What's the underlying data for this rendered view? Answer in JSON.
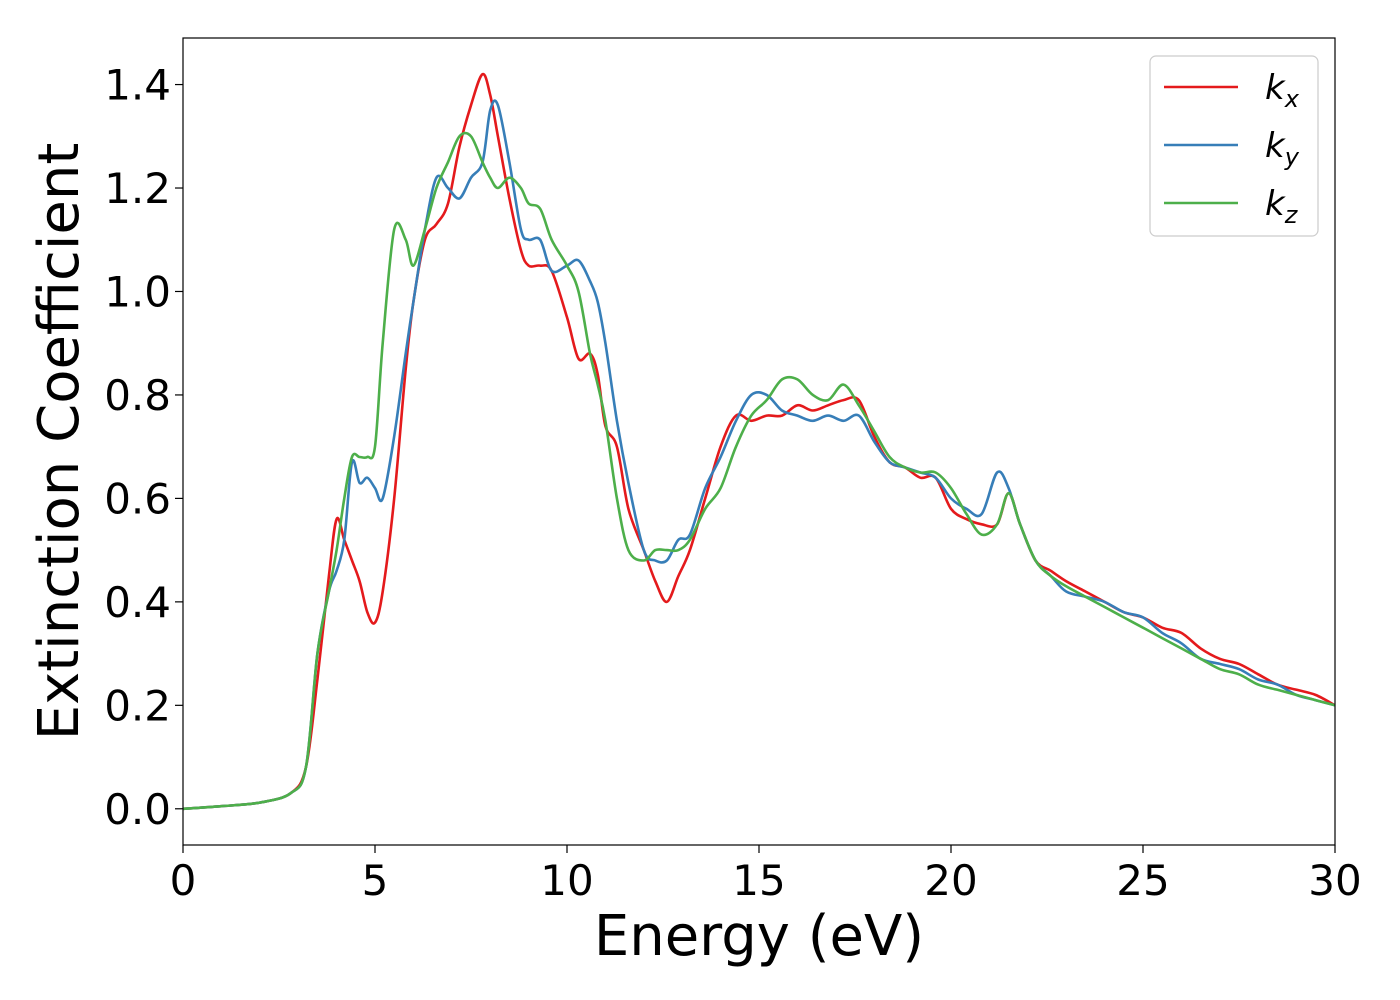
{
  "chart_data": {
    "type": "line",
    "xlabel": "Energy (eV)",
    "ylabel": "Extinction Coefficient",
    "xlim": [
      0,
      30
    ],
    "ylim": [
      -0.07,
      1.49
    ],
    "xticks": [
      0,
      5,
      10,
      15,
      20,
      25,
      30
    ],
    "yticks": [
      0.0,
      0.2,
      0.4,
      0.6,
      0.8,
      1.0,
      1.2,
      1.4
    ],
    "xtick_labels": [
      "0",
      "5",
      "10",
      "15",
      "20",
      "25",
      "30"
    ],
    "ytick_labels": [
      "0.0",
      "0.2",
      "0.4",
      "0.6",
      "0.8",
      "1.0",
      "1.2",
      "1.4"
    ],
    "grid": false,
    "legend_position": "top-right",
    "series": [
      {
        "name": "k",
        "subscript": "x",
        "color": "#e41a1c",
        "x": [
          0,
          1,
          2,
          2.8,
          3.2,
          3.5,
          3.8,
          4.0,
          4.2,
          4.4,
          4.6,
          4.8,
          5.0,
          5.2,
          5.5,
          5.8,
          6.0,
          6.3,
          6.6,
          6.9,
          7.2,
          7.5,
          7.8,
          8.0,
          8.2,
          8.5,
          8.8,
          9.0,
          9.3,
          9.6,
          10.0,
          10.3,
          10.6,
          10.8,
          11.0,
          11.3,
          11.6,
          12.0,
          12.3,
          12.6,
          12.9,
          13.2,
          13.6,
          14.0,
          14.4,
          14.8,
          15.2,
          15.6,
          16.0,
          16.4,
          16.8,
          17.2,
          17.6,
          18.0,
          18.4,
          18.8,
          19.2,
          19.6,
          20.0,
          20.4,
          20.8,
          21.2,
          21.5,
          21.8,
          22.2,
          22.6,
          23.0,
          23.5,
          24.0,
          24.5,
          25.0,
          25.5,
          26.0,
          26.5,
          27.0,
          27.5,
          28.0,
          28.5,
          29.0,
          29.5,
          30.0
        ],
        "y": [
          0.0,
          0.005,
          0.012,
          0.03,
          0.08,
          0.25,
          0.45,
          0.56,
          0.52,
          0.48,
          0.44,
          0.38,
          0.36,
          0.42,
          0.6,
          0.85,
          0.98,
          1.1,
          1.13,
          1.17,
          1.28,
          1.36,
          1.42,
          1.38,
          1.3,
          1.18,
          1.08,
          1.05,
          1.05,
          1.04,
          0.95,
          0.87,
          0.88,
          0.84,
          0.74,
          0.7,
          0.58,
          0.5,
          0.44,
          0.4,
          0.45,
          0.5,
          0.6,
          0.7,
          0.76,
          0.75,
          0.76,
          0.76,
          0.78,
          0.77,
          0.78,
          0.79,
          0.79,
          0.72,
          0.67,
          0.66,
          0.64,
          0.64,
          0.58,
          0.56,
          0.55,
          0.55,
          0.61,
          0.55,
          0.48,
          0.46,
          0.44,
          0.42,
          0.4,
          0.38,
          0.37,
          0.35,
          0.34,
          0.31,
          0.29,
          0.28,
          0.26,
          0.24,
          0.23,
          0.22,
          0.2
        ]
      },
      {
        "name": "k",
        "subscript": "y",
        "color": "#377eb8",
        "x": [
          0,
          1,
          2,
          2.8,
          3.2,
          3.5,
          3.8,
          4.0,
          4.2,
          4.4,
          4.6,
          4.8,
          5.0,
          5.2,
          5.5,
          5.8,
          6.0,
          6.3,
          6.6,
          6.9,
          7.2,
          7.5,
          7.8,
          8.0,
          8.2,
          8.5,
          8.8,
          9.0,
          9.3,
          9.6,
          10.0,
          10.3,
          10.6,
          10.8,
          11.0,
          11.3,
          11.6,
          12.0,
          12.3,
          12.6,
          12.9,
          13.2,
          13.6,
          14.0,
          14.4,
          14.8,
          15.2,
          15.6,
          16.0,
          16.4,
          16.8,
          17.2,
          17.6,
          18.0,
          18.4,
          18.8,
          19.2,
          19.6,
          20.0,
          20.4,
          20.8,
          21.2,
          21.5,
          21.8,
          22.2,
          22.6,
          23.0,
          23.5,
          24.0,
          24.5,
          25.0,
          25.5,
          26.0,
          26.5,
          27.0,
          27.5,
          28.0,
          28.5,
          29.0,
          29.5,
          30.0
        ],
        "y": [
          0.0,
          0.005,
          0.012,
          0.03,
          0.08,
          0.3,
          0.42,
          0.46,
          0.52,
          0.67,
          0.63,
          0.64,
          0.62,
          0.6,
          0.72,
          0.88,
          0.98,
          1.12,
          1.22,
          1.2,
          1.18,
          1.22,
          1.25,
          1.35,
          1.36,
          1.25,
          1.12,
          1.1,
          1.1,
          1.04,
          1.05,
          1.06,
          1.02,
          0.98,
          0.9,
          0.75,
          0.63,
          0.5,
          0.48,
          0.48,
          0.52,
          0.53,
          0.62,
          0.68,
          0.75,
          0.8,
          0.8,
          0.77,
          0.76,
          0.75,
          0.76,
          0.75,
          0.76,
          0.71,
          0.67,
          0.66,
          0.65,
          0.64,
          0.6,
          0.58,
          0.57,
          0.65,
          0.62,
          0.55,
          0.48,
          0.45,
          0.42,
          0.41,
          0.4,
          0.38,
          0.37,
          0.34,
          0.32,
          0.29,
          0.28,
          0.27,
          0.25,
          0.24,
          0.22,
          0.21,
          0.2
        ]
      },
      {
        "name": "k",
        "subscript": "z",
        "color": "#4daf4a",
        "x": [
          0,
          1,
          2,
          2.8,
          3.2,
          3.5,
          3.8,
          4.0,
          4.2,
          4.4,
          4.6,
          4.8,
          5.0,
          5.2,
          5.5,
          5.8,
          6.0,
          6.3,
          6.6,
          6.9,
          7.2,
          7.5,
          7.8,
          8.0,
          8.2,
          8.5,
          8.8,
          9.0,
          9.3,
          9.6,
          10.0,
          10.3,
          10.6,
          10.8,
          11.0,
          11.3,
          11.6,
          12.0,
          12.3,
          12.6,
          12.9,
          13.2,
          13.6,
          14.0,
          14.4,
          14.8,
          15.2,
          15.6,
          16.0,
          16.4,
          16.8,
          17.2,
          17.6,
          18.0,
          18.4,
          18.8,
          19.2,
          19.6,
          20.0,
          20.4,
          20.8,
          21.2,
          21.5,
          21.8,
          22.2,
          22.6,
          23.0,
          23.5,
          24.0,
          24.5,
          25.0,
          25.5,
          26.0,
          26.5,
          27.0,
          27.5,
          28.0,
          28.5,
          29.0,
          29.5,
          30.0
        ],
        "y": [
          0.0,
          0.005,
          0.012,
          0.03,
          0.08,
          0.3,
          0.42,
          0.5,
          0.6,
          0.68,
          0.68,
          0.68,
          0.7,
          0.9,
          1.12,
          1.1,
          1.05,
          1.12,
          1.2,
          1.25,
          1.3,
          1.3,
          1.25,
          1.22,
          1.2,
          1.22,
          1.2,
          1.17,
          1.16,
          1.1,
          1.05,
          1.0,
          0.88,
          0.82,
          0.75,
          0.6,
          0.5,
          0.48,
          0.5,
          0.5,
          0.5,
          0.52,
          0.58,
          0.62,
          0.7,
          0.76,
          0.79,
          0.83,
          0.83,
          0.8,
          0.79,
          0.82,
          0.78,
          0.73,
          0.68,
          0.66,
          0.65,
          0.65,
          0.62,
          0.57,
          0.53,
          0.55,
          0.61,
          0.55,
          0.48,
          0.45,
          0.43,
          0.41,
          0.39,
          0.37,
          0.35,
          0.33,
          0.31,
          0.29,
          0.27,
          0.26,
          0.24,
          0.23,
          0.22,
          0.21,
          0.2
        ]
      }
    ]
  }
}
